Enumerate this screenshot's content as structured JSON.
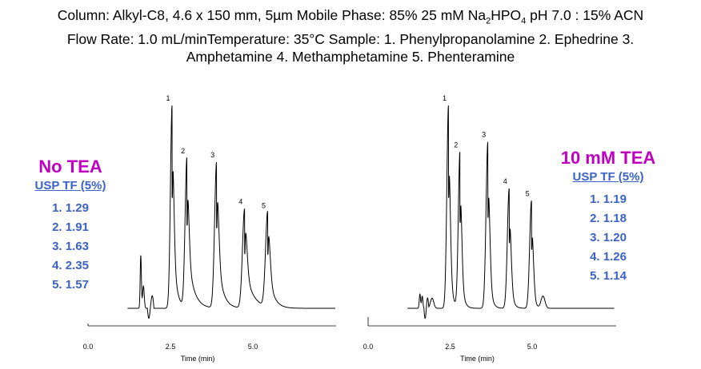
{
  "header": {
    "line1_a": "Column: Alkyl-C8, 4.6 x 150 mm, 5",
    "line1_mu": "µ",
    "line1_b": "m  Mobile Phase:  85% 25 mM Na",
    "line1_sub2": "2",
    "line1_c": "HPO",
    "line1_sub4": "4",
    "line1_d": " pH 7.0 : 15% ACN",
    "line2": "Flow Rate:  1.0 mL/minTemperature:  35°C   Sample:  1. Phenylpropanolamine    2. Ephedrine    3.",
    "line3": "Amphetamine     4. Methamphetamine     5.  Phenteramine"
  },
  "colors": {
    "title": "#c000c0",
    "values": "#3a62c6",
    "trace": "#000000"
  },
  "chart_data": [
    {
      "type": "line",
      "title": "No TEA",
      "subtitle": "USP TF (5%)",
      "xlabel": "Time (min)",
      "xlim": [
        0,
        7.5
      ],
      "x_ticks": [
        "0.0",
        "2.5",
        "5.0"
      ],
      "tailing_factors": [
        "1.  1.29",
        "2.  1.91",
        "3.  1.63",
        "4.  2.35",
        "5.  1.57"
      ],
      "peaks": [
        {
          "label": "1",
          "time": 2.55,
          "height": 1.0,
          "width": 0.05,
          "tail": 0.1
        },
        {
          "label": "2",
          "time": 3.0,
          "height": 0.74,
          "width": 0.055,
          "tail": 0.17
        },
        {
          "label": "3",
          "time": 3.9,
          "height": 0.72,
          "width": 0.06,
          "tail": 0.15
        },
        {
          "label": "4",
          "time": 4.75,
          "height": 0.49,
          "width": 0.065,
          "tail": 0.22
        },
        {
          "label": "5",
          "time": 5.45,
          "height": 0.47,
          "width": 0.065,
          "tail": 0.15
        }
      ],
      "solvent_front": [
        {
          "time": 1.6,
          "height": 0.26,
          "width": 0.018
        },
        {
          "time": 1.68,
          "height": 0.11,
          "width": 0.025
        },
        {
          "time": 1.88,
          "height": 0.02,
          "width": 0.03
        }
      ]
    },
    {
      "type": "line",
      "title": "10 mM TEA",
      "subtitle": "USP TF (5%)",
      "xlabel": "Time (min)",
      "xlim": [
        0,
        7.5
      ],
      "x_ticks": [
        "0.0",
        "2.5",
        "5.0"
      ],
      "tailing_factors": [
        "1.  1.19",
        "2.  1.18",
        "3.  1.20",
        "4.  1.26",
        "5.  1.14"
      ],
      "peaks": [
        {
          "label": "1",
          "time": 2.45,
          "height": 1.0,
          "width": 0.05,
          "tail": 0.07
        },
        {
          "label": "2",
          "time": 2.8,
          "height": 0.77,
          "width": 0.05,
          "tail": 0.07
        },
        {
          "label": "3",
          "time": 3.65,
          "height": 0.82,
          "width": 0.055,
          "tail": 0.07
        },
        {
          "label": "4",
          "time": 4.3,
          "height": 0.59,
          "width": 0.055,
          "tail": 0.07
        },
        {
          "label": "5",
          "time": 4.98,
          "height": 0.53,
          "width": 0.055,
          "tail": 0.06
        }
      ],
      "solvent_front": [
        {
          "time": 1.58,
          "height": 0.07,
          "width": 0.02
        },
        {
          "time": 1.65,
          "height": 0.06,
          "width": 0.02
        },
        {
          "time": 1.95,
          "height": 0.05,
          "width": 0.05
        },
        {
          "time": 5.33,
          "height": 0.06,
          "width": 0.06
        }
      ]
    }
  ]
}
